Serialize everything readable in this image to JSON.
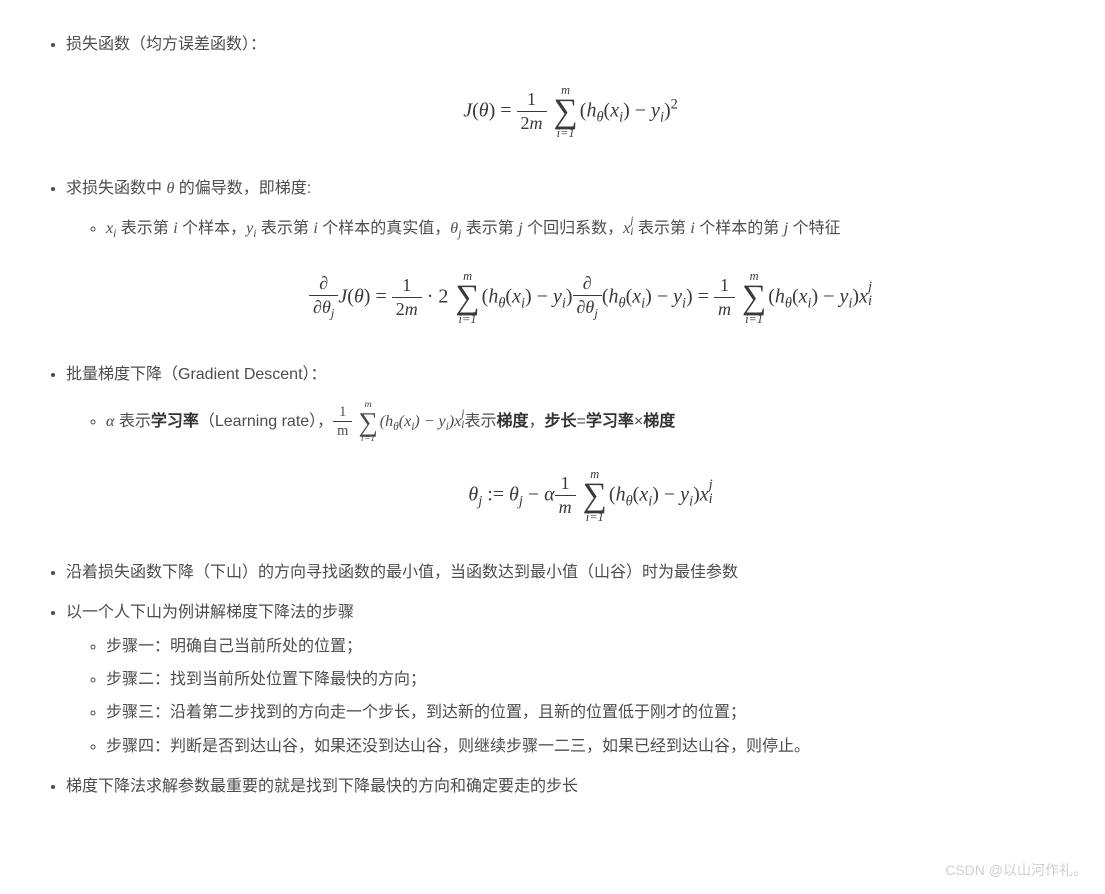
{
  "b1": {
    "title": "损失函数（均方误差函数）：",
    "formula_html": "<span class='it'>J</span>(<span class='it'>θ</span>) = <span class='frac'><span class='num'>1</span><span class='den'>2<span class='it'>m</span></span></span> <span class='bigop'><span class='top'>m</span><span class='sym'>∑</span><span class='bot'>i=1</span></span>(<span class='it'>h</span><sub>θ</sub>(<span class='it'>x</span><sub>i</sub>) − <span class='it'>y</span><sub>i</sub>)<sup class='rm'>2</sup>"
  },
  "b2": {
    "title_html": "求损失函数中 <span class='inline-math'>θ</span> 的偏导数，即梯度:",
    "sub_html": "<span class='inline-math'>x<sub>i</sub></span> 表示第 <span class='inline-math'>i</span> 个样本，<span class='inline-math'>y<sub>i</sub></span> 表示第 <span class='inline-math'>i</span> 个样本的真实值，<span class='inline-math'>θ<sub>j</sub></span> 表示第 <span class='inline-math'>j</span> 个回归系数，<span class='inline-math'>x<span class='supsub'><span>j</span><span>i</span></span></span> 表示第 <span class='inline-math'>i</span> 个样本的第 <span class='inline-math'>j</span> 个特征",
    "formula_html": "<span class='frac'><span class='num'>∂</span><span class='den'>∂<span class='it'>θ</span><sub>j</sub></span></span><span class='it'>J</span>(<span class='it'>θ</span>) = <span class='frac'><span class='num'>1</span><span class='den'>2<span class='it'>m</span></span></span> · 2 <span class='bigop'><span class='top'>m</span><span class='sym'>∑</span><span class='bot'>i=1</span></span>(<span class='it'>h</span><sub>θ</sub>(<span class='it'>x</span><sub>i</sub>) − <span class='it'>y</span><sub>i</sub>)<span class='frac'><span class='num'>∂</span><span class='den'>∂<span class='it'>θ</span><sub>j</sub></span></span>(<span class='it'>h</span><sub>θ</sub>(<span class='it'>x</span><sub>i</sub>) − <span class='it'>y</span><sub>i</sub>) = <span class='frac'><span class='num'>1</span><span class='den'><span class='it'>m</span></span></span> <span class='bigop'><span class='top'>m</span><span class='sym'>∑</span><span class='bot'>i=1</span></span>(<span class='it'>h</span><sub>θ</sub>(<span class='it'>x</span><sub>i</sub>) − <span class='it'>y</span><sub>i</sub>)<span class='it'>x</span><span class='supsub'><span>j</span><span>i</span></span>"
  },
  "b3": {
    "title": "批量梯度下降（Gradient Descent）：",
    "sub_html": "<span class='inline-math'>α</span> 表示<span class='bold'>学习率</span>（Learning rate），<span class='inline-math'><span class='frac'><span class='num'>1</span><span class='den'>m</span></span> <span class='bigop'><span class='top'>m</span><span class='sym'>∑</span><span class='bot'>i=1</span></span>(h<sub>θ</sub>(x<sub>i</sub>) − y<sub>i</sub>)x<span class='supsub'><span>j</span><span>i</span></span></span>表示<span class='bold'>梯度</span>，<span class='bold'>步长</span>=<span class='bold'>学习率</span>×<span class='bold'>梯度</span>",
    "formula_html": "<span class='it'>θ</span><sub>j</sub> := <span class='it'>θ</span><sub>j</sub> − <span class='it'>α</span><span class='frac'><span class='num'>1</span><span class='den'><span class='it'>m</span></span></span> <span class='bigop'><span class='top'>m</span><span class='sym'>∑</span><span class='bot'>i=1</span></span>(<span class='it'>h</span><sub>θ</sub>(<span class='it'>x</span><sub>i</sub>) − <span class='it'>y</span><sub>i</sub>)<span class='it'>x</span><span class='supsub'><span>j</span><span>i</span></span>"
  },
  "b4": "沿着损失函数下降（下山）的方向寻找函数的最小值，当函数达到最小值（山谷）时为最佳参数",
  "b5": {
    "title": "以一个人下山为例讲解梯度下降法的步骤",
    "steps": [
      "步骤一：明确自己当前所处的位置；",
      "步骤二：找到当前所处位置下降最快的方向；",
      "步骤三：沿着第二步找到的方向走一个步长，到达新的位置，且新的位置低于刚才的位置；",
      "步骤四：判断是否到达山谷，如果还没到达山谷，则继续步骤一二三，如果已经到达山谷，则停止。"
    ]
  },
  "b6": "梯度下降法求解参数最重要的就是找到下降最快的方向和确定要走的步长",
  "watermark": "CSDN @以山河作礼。"
}
